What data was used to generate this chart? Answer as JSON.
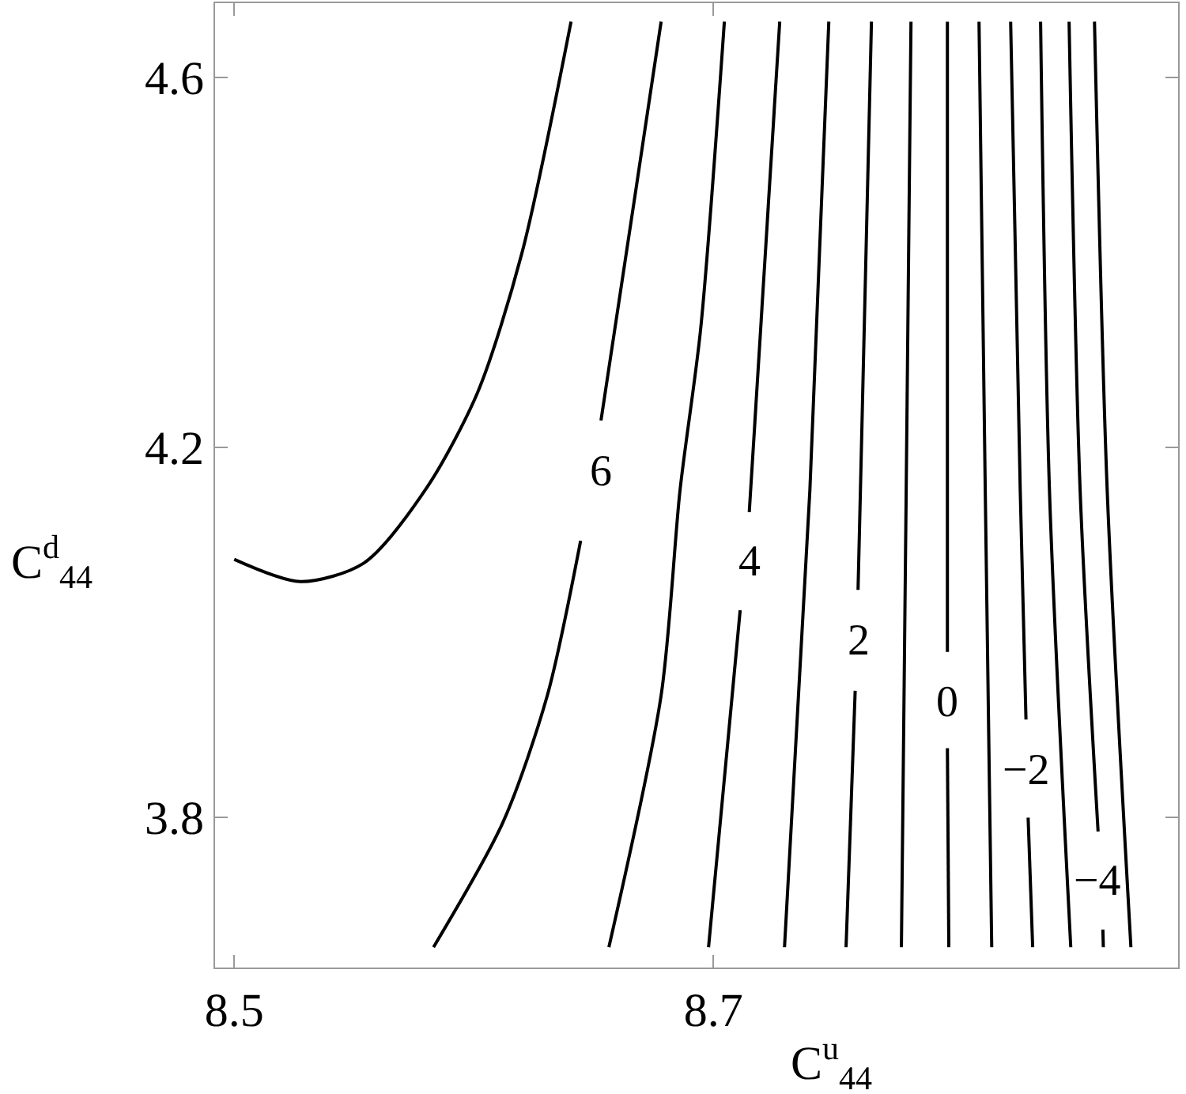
{
  "chart_data": {
    "type": "line",
    "xlabel": "C$^{u}$$_{44}$",
    "ylabel": "C$^{d}$$_{44}$",
    "xlim": [
      8.492,
      8.894
    ],
    "ylim": [
      3.638,
      4.68
    ],
    "xticks": [
      8.5,
      8.7
    ],
    "yticks": [
      3.8,
      4.2,
      4.6
    ],
    "marker": "none",
    "line_style": "solid",
    "series": [
      {
        "color": "#000000",
        "x": [
          8.5,
          8.5277,
          8.5541,
          8.5805,
          8.6017,
          8.6201,
          8.6406
        ],
        "values": [
          4.079,
          4.055,
          4.075,
          4.157,
          4.26,
          4.41,
          4.66
        ]
      },
      {
        "color": "#000000",
        "x": [
          8.6782,
          8.6677,
          8.6531
        ],
        "values": [
          4.66,
          4.479,
          4.229
        ]
      },
      {
        "color": "#000000",
        "x": [
          8.6446,
          8.6307,
          8.6122,
          8.5832
        ],
        "values": [
          4.099,
          3.932,
          3.795,
          3.66
        ]
      },
      {
        "color": "#000000",
        "x": [
          8.7046,
          8.6947,
          8.6861,
          8.6782,
          8.6564
        ],
        "values": [
          4.66,
          4.328,
          4.154,
          3.932,
          3.66
        ]
      },
      {
        "color": "#000000",
        "x": [
          8.7277,
          8.715
        ],
        "values": [
          4.66,
          4.13
        ]
      },
      {
        "color": "#000000",
        "x": [
          8.7112,
          8.698
        ],
        "values": [
          4.024,
          3.66
        ]
      },
      {
        "color": "#000000",
        "x": [
          8.7482,
          8.7403,
          8.7297
        ],
        "values": [
          4.66,
          4.154,
          3.66
        ]
      },
      {
        "color": "#000000",
        "x": [
          8.766,
          8.7614,
          8.7604
        ],
        "values": [
          4.66,
          4.154,
          4.046
        ]
      },
      {
        "color": "#000000",
        "x": [
          8.7592,
          8.7554
        ],
        "values": [
          3.937,
          3.66
        ]
      },
      {
        "color": "#000000",
        "x": [
          8.7825,
          8.7805,
          8.7785
        ],
        "values": [
          4.66,
          4.154,
          3.66
        ]
      },
      {
        "color": "#000000",
        "x": [
          8.7977,
          8.7977
        ],
        "values": [
          4.66,
          3.979
        ]
      },
      {
        "color": "#000000",
        "x": [
          8.7977,
          8.7983
        ],
        "values": [
          3.875,
          3.66
        ]
      },
      {
        "color": "#000000",
        "x": [
          8.8109,
          8.8135,
          8.8162
        ],
        "values": [
          4.66,
          4.154,
          3.66
        ]
      },
      {
        "color": "#000000",
        "x": [
          8.8241,
          8.8281,
          8.8305
        ],
        "values": [
          4.66,
          4.154,
          3.906
        ]
      },
      {
        "color": "#000000",
        "x": [
          8.8314,
          8.8333
        ],
        "values": [
          3.8,
          3.66
        ]
      },
      {
        "color": "#000000",
        "x": [
          8.8366,
          8.8403,
          8.8492
        ],
        "values": [
          4.66,
          4.154,
          3.66
        ]
      },
      {
        "color": "#000000",
        "x": [
          8.8485,
          8.8531,
          8.8606
        ],
        "values": [
          4.66,
          4.154,
          3.785
        ]
      },
      {
        "color": "#000000",
        "x": [
          8.8626,
          8.8628
        ],
        "values": [
          3.679,
          3.66
        ]
      },
      {
        "color": "#000000",
        "x": [
          8.8591,
          8.8644,
          8.8743
        ],
        "values": [
          4.66,
          4.154,
          3.66
        ]
      }
    ],
    "annotations": [
      {
        "text": "6",
        "x": 8.6531,
        "y": 4.229
      },
      {
        "text": "4",
        "x": 8.715,
        "y": 4.13
      },
      {
        "text": "2",
        "x": 8.7604,
        "y": 4.046
      },
      {
        "text": "0",
        "x": 8.7977,
        "y": 3.979
      },
      {
        "text": "−2",
        "x": 8.8305,
        "y": 3.906
      },
      {
        "text": "−4",
        "x": 8.8606,
        "y": 3.785
      }
    ]
  }
}
